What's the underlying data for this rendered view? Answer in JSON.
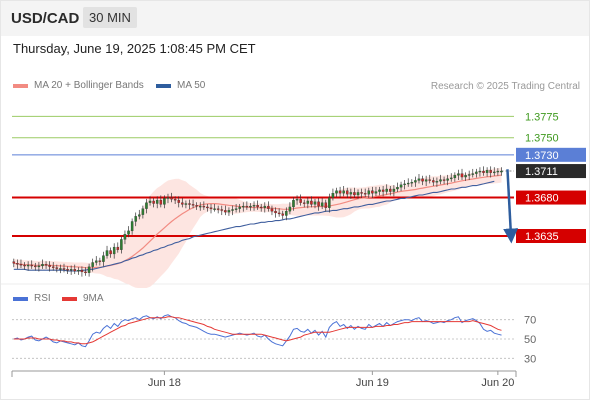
{
  "header": {
    "symbol": "USD/CAD",
    "timeframe": "30 MIN",
    "timestamp": "Thursday, June 19, 2025 1:08:45 PM CET",
    "credit": "Research © 2025 Trading Central"
  },
  "colors": {
    "candle_up": "#2e7d32",
    "candle_down": "#c62828",
    "ma20": "#f28b82",
    "bollinger_fill": "#fde0dc",
    "ma50": "#3f5e9e",
    "resistance_green": "#9ccc65",
    "pivot_blue": "#5b7fd6",
    "support_red": "#d50000",
    "rsi": "#4a72d6",
    "rsi_ma": "#e53935",
    "arrow": "#2e5d9e"
  },
  "chart_data": [
    {
      "type": "line",
      "panel": "price",
      "legend": [
        {
          "name": "MA 20 + Bollinger Bands",
          "color": "#f28b82"
        },
        {
          "name": "MA 50",
          "color": "#2e5d9e"
        }
      ],
      "ylim": [
        1.358,
        1.38
      ],
      "x_ticks": [
        "Jun 18",
        "Jun 19",
        "Jun 20"
      ],
      "x_tick_index": [
        42,
        100,
        135
      ],
      "bars_count": 137,
      "close": [
        1.3603,
        1.3602,
        1.3601,
        1.36,
        1.3601,
        1.36,
        1.3599,
        1.36,
        1.3602,
        1.3601,
        1.3599,
        1.3598,
        1.3597,
        1.3597,
        1.3596,
        1.3595,
        1.3596,
        1.3594,
        1.3595,
        1.3593,
        1.3592,
        1.3599,
        1.3604,
        1.3606,
        1.3605,
        1.3612,
        1.3618,
        1.3614,
        1.3622,
        1.3619,
        1.3631,
        1.3637,
        1.3641,
        1.3652,
        1.3658,
        1.366,
        1.3667,
        1.3674,
        1.3676,
        1.3673,
        1.3677,
        1.3672,
        1.3679,
        1.368,
        1.3678,
        1.3677,
        1.3674,
        1.3672,
        1.3673,
        1.3672,
        1.3671,
        1.367,
        1.367,
        1.3669,
        1.3668,
        1.3667,
        1.3667,
        1.3666,
        1.3665,
        1.3663,
        1.3665,
        1.3666,
        1.3667,
        1.3669,
        1.367,
        1.3669,
        1.367,
        1.3671,
        1.3669,
        1.3668,
        1.367,
        1.3667,
        1.3664,
        1.3662,
        1.3661,
        1.3659,
        1.3664,
        1.3669,
        1.3677,
        1.3678,
        1.3674,
        1.3673,
        1.3676,
        1.3672,
        1.3675,
        1.367,
        1.3674,
        1.3668,
        1.368,
        1.3685,
        1.3688,
        1.3685,
        1.3688,
        1.3684,
        1.3686,
        1.3683,
        1.3686,
        1.3685,
        1.3684,
        1.3688,
        1.3685,
        1.3687,
        1.3689,
        1.3687,
        1.369,
        1.3687,
        1.369,
        1.3692,
        1.3695,
        1.3696,
        1.3697,
        1.3698,
        1.37,
        1.3702,
        1.3699,
        1.3701,
        1.37,
        1.3698,
        1.3699,
        1.3701,
        1.37,
        1.3702,
        1.3703,
        1.3706,
        1.3708,
        1.3704,
        1.3706,
        1.3707,
        1.3708,
        1.371,
        1.3711,
        1.3709,
        1.3712,
        1.3709,
        1.371,
        1.3711,
        1.3711
      ],
      "ma50": [
        1.3596,
        1.3596,
        1.3596,
        1.3596,
        1.3595,
        1.3595,
        1.3595,
        1.3595,
        1.3595,
        1.3595,
        1.3595,
        1.3595,
        1.3595,
        1.3595,
        1.3595,
        1.3594,
        1.3594,
        1.3594,
        1.3594,
        1.3595,
        1.3595,
        1.3596,
        1.3596,
        1.3597,
        1.3598,
        1.3599,
        1.36,
        1.3601,
        1.3602,
        1.3603,
        1.3604,
        1.3606,
        1.3607,
        1.3609,
        1.361,
        1.3612,
        1.3613,
        1.3615,
        1.3616,
        1.3618,
        1.3619,
        1.3621,
        1.3622,
        1.3624,
        1.3625,
        1.3627,
        1.3628,
        1.363,
        1.3631,
        1.3632,
        1.3634,
        1.3635,
        1.3636,
        1.3637,
        1.3638,
        1.3639,
        1.364,
        1.3641,
        1.3642,
        1.3643,
        1.3644,
        1.3645,
        1.3646,
        1.3646,
        1.3647,
        1.3648,
        1.3649,
        1.3649,
        1.365,
        1.3651,
        1.3651,
        1.3652,
        1.3652,
        1.3653,
        1.3653,
        1.3654,
        1.3655,
        1.3655,
        1.3656,
        1.3657,
        1.3658,
        1.3659,
        1.366,
        1.3661,
        1.3662,
        1.3662,
        1.3663,
        1.3664,
        1.3664,
        1.3665,
        1.3665,
        1.3666,
        1.3667,
        1.3667,
        1.3668,
        1.3669,
        1.3669,
        1.367,
        1.3671,
        1.3672,
        1.3672,
        1.3673,
        1.3674,
        1.3675,
        1.3676,
        1.3676,
        1.3677,
        1.3678,
        1.3679,
        1.3679,
        1.368,
        1.3681,
        1.3682,
        1.3683,
        1.3683,
        1.3684,
        1.3685,
        1.3686,
        1.3686,
        1.3687,
        1.3688,
        1.3689,
        1.369,
        1.369,
        1.3691,
        1.3692,
        1.3692,
        1.3693,
        1.3694,
        1.3694,
        1.3695,
        1.3696,
        1.3697,
        1.3698,
        1.3699
      ]
    },
    {
      "type": "line",
      "panel": "rsi",
      "legend": [
        {
          "name": "RSI",
          "color": "#4a72d6"
        },
        {
          "name": "9MA",
          "color": "#e53935"
        }
      ],
      "ylim": [
        20,
        80
      ],
      "y_ticks": [
        70,
        50,
        30
      ],
      "rsi": [
        50,
        51,
        49,
        50,
        52,
        53,
        49,
        48,
        50,
        52,
        50,
        47,
        46,
        48,
        47,
        46,
        45,
        44,
        46,
        43,
        42,
        48,
        55,
        57,
        56,
        61,
        64,
        61,
        66,
        63,
        68,
        70,
        69,
        71,
        72,
        70,
        73,
        74,
        72,
        71,
        73,
        71,
        74,
        75,
        73,
        72,
        69,
        67,
        66,
        64,
        63,
        62,
        60,
        58,
        56,
        55,
        55,
        54,
        53,
        52,
        53,
        54,
        55,
        56,
        55,
        54,
        55,
        56,
        53,
        52,
        54,
        50,
        47,
        45,
        44,
        43,
        48,
        53,
        60,
        61,
        58,
        57,
        60,
        56,
        59,
        54,
        58,
        52,
        62,
        66,
        68,
        63,
        65,
        61,
        64,
        60,
        63,
        61,
        60,
        65,
        62,
        64,
        66,
        63,
        67,
        64,
        66,
        68,
        69,
        70,
        70,
        69,
        71,
        72,
        68,
        69,
        68,
        66,
        67,
        68,
        67,
        69,
        70,
        72,
        73,
        67,
        69,
        70,
        71,
        69,
        66,
        60,
        58,
        59,
        56,
        55,
        54
      ],
      "ma9": [
        50,
        50,
        50,
        50,
        51,
        51,
        51,
        50,
        50,
        50,
        50,
        49,
        49,
        48,
        48,
        47,
        47,
        46,
        46,
        45,
        45,
        46,
        47,
        49,
        51,
        53,
        55,
        57,
        59,
        61,
        63,
        64,
        66,
        67,
        68,
        69,
        70,
        71,
        72,
        72,
        72,
        72,
        72,
        73,
        73,
        72,
        72,
        71,
        70,
        69,
        68,
        67,
        66,
        65,
        63,
        62,
        60,
        59,
        58,
        57,
        56,
        55,
        55,
        55,
        55,
        55,
        55,
        55,
        55,
        55,
        54,
        53,
        52,
        51,
        50,
        49,
        48,
        49,
        50,
        51,
        52,
        54,
        55,
        56,
        57,
        57,
        57,
        57,
        57,
        58,
        59,
        60,
        61,
        62,
        62,
        62,
        62,
        62,
        62,
        62,
        62,
        63,
        63,
        63,
        64,
        64,
        65,
        65,
        66,
        67,
        67,
        68,
        68,
        68,
        68,
        68,
        68,
        68,
        68,
        68,
        68,
        68,
        68,
        68,
        68,
        68,
        68,
        68,
        69,
        68,
        67,
        66,
        65,
        64,
        62,
        60,
        59
      ]
    }
  ],
  "levels": [
    {
      "value": 1.3775,
      "label": "1.3775",
      "kind": "resistance"
    },
    {
      "value": 1.375,
      "label": "1.3750",
      "kind": "resistance"
    },
    {
      "value": 1.373,
      "label": "1.3730",
      "kind": "pivot"
    },
    {
      "value": 1.368,
      "label": "1.3680",
      "kind": "support"
    },
    {
      "value": 1.3635,
      "label": "1.3635",
      "kind": "support"
    }
  ],
  "last_price": {
    "value": 1.3711,
    "label": "1.3711"
  },
  "forecast_arrow": {
    "from": 1.3713,
    "to": 1.3635
  }
}
